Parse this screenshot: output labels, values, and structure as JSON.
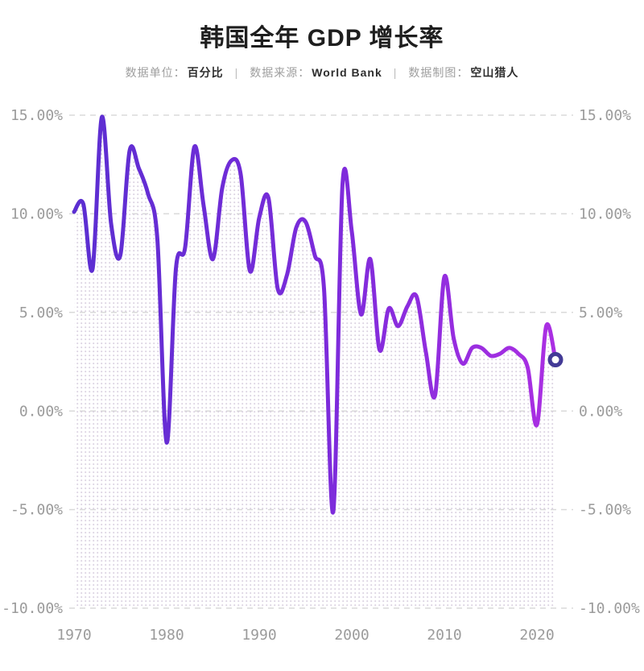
{
  "header": {
    "title": "韩国全年 GDP 增长率",
    "meta": {
      "unit_label": "数据单位：",
      "unit_value": "百分比",
      "separator": "|",
      "source_label": "数据来源：",
      "source_value": "World Bank",
      "author_label": "数据制图：",
      "author_value": "空山猎人"
    }
  },
  "chart_data": {
    "type": "line",
    "title": "韩国全年 GDP 增长率",
    "unit": "百分比 (%)",
    "source": "World Bank",
    "x": [
      1970,
      1971,
      1972,
      1973,
      1974,
      1975,
      1976,
      1977,
      1978,
      1979,
      1980,
      1981,
      1982,
      1983,
      1984,
      1985,
      1986,
      1987,
      1988,
      1989,
      1990,
      1991,
      1992,
      1993,
      1994,
      1995,
      1996,
      1997,
      1998,
      1999,
      2000,
      2001,
      2002,
      2003,
      2004,
      2005,
      2006,
      2007,
      2008,
      2009,
      2010,
      2011,
      2012,
      2013,
      2014,
      2015,
      2016,
      2017,
      2018,
      2019,
      2020,
      2021,
      2022
    ],
    "series": [
      {
        "name": "GDP 增长率 (%)",
        "values": [
          10.1,
          10.5,
          7.2,
          14.9,
          9.5,
          7.9,
          13.2,
          12.3,
          11.0,
          8.7,
          -1.6,
          7.2,
          8.3,
          13.4,
          10.4,
          7.7,
          11.3,
          12.7,
          12.0,
          7.1,
          9.8,
          10.8,
          6.2,
          6.9,
          9.3,
          9.6,
          7.9,
          6.2,
          -5.1,
          11.5,
          9.1,
          4.9,
          7.7,
          3.1,
          5.2,
          4.3,
          5.3,
          5.8,
          3.0,
          0.8,
          6.8,
          3.7,
          2.4,
          3.2,
          3.2,
          2.8,
          2.9,
          3.2,
          2.9,
          2.2,
          -0.7,
          4.3,
          2.6
        ]
      }
    ],
    "ylim": [
      -10,
      15
    ],
    "xlim": [
      1970,
      2022
    ],
    "y_ticks": [
      {
        "value": 15,
        "label": "15.00%"
      },
      {
        "value": 10,
        "label": "10.00%"
      },
      {
        "value": 5,
        "label": "5.00%"
      },
      {
        "value": 0,
        "label": "0.00%"
      },
      {
        "value": -5,
        "label": "-5.00%"
      },
      {
        "value": -10,
        "label": "-10.00%"
      }
    ],
    "x_ticks": [
      {
        "value": 1970,
        "label": "1970"
      },
      {
        "value": 1980,
        "label": "1980"
      },
      {
        "value": 1990,
        "label": "1990"
      },
      {
        "value": 2000,
        "label": "2000"
      },
      {
        "value": 2010,
        "label": "2010"
      },
      {
        "value": 2020,
        "label": "2020"
      }
    ],
    "grid": "horizontal-dashed",
    "legend": "none",
    "fill": "dotted-area-to-baseline",
    "last_point_marker": "open-circle",
    "style": {
      "line_gradient": [
        "#5b2ed1",
        "#7e2bdb",
        "#ab2fe3"
      ],
      "marker_stroke": "#433a96",
      "dot_fill": "#d8cfdf",
      "grid_color": "#dadada",
      "tick_text_color": "#9b9b9b",
      "title_color": "#1e1e1e",
      "background": "#ffffff"
    }
  }
}
